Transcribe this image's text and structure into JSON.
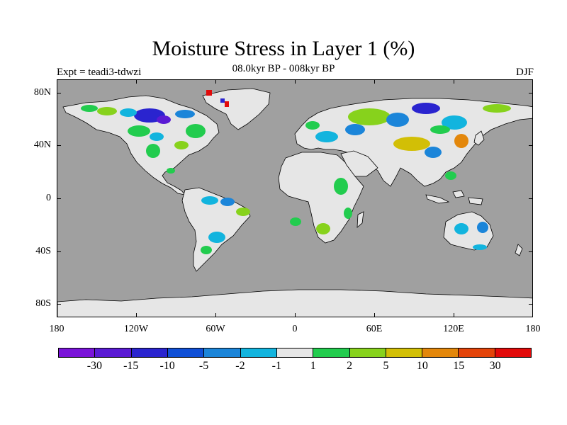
{
  "title": "Moisture Stress in Layer 1 (%)",
  "subtitle": "08.0kyr BP - 008kyr BP",
  "experiment_label": "Expt = teadi3-tdwzi",
  "season_label": "DJF",
  "map": {
    "ocean_color": "#a0a0a0",
    "land_base_color": "#e6e6e6",
    "latitude_labels": [
      "80N",
      "40N",
      "0",
      "40S",
      "80S"
    ],
    "latitude_values": [
      80,
      40,
      0,
      -40,
      -80
    ],
    "longitude_labels": [
      "180",
      "120W",
      "60W",
      "0",
      "60E",
      "120E",
      "180"
    ],
    "longitude_values": [
      -180,
      -120,
      -60,
      0,
      60,
      120,
      180
    ]
  },
  "colorbar": {
    "colors": [
      "#7a13d9",
      "#5a1ad4",
      "#2a24cf",
      "#0f4fd6",
      "#1b85d9",
      "#12b4de",
      "#e6e6e6",
      "#22cc4e",
      "#87d21c",
      "#d2bf06",
      "#e3870b",
      "#e3440a",
      "#e20a0a"
    ],
    "labels": [
      "-30",
      "-15",
      "-10",
      "-5",
      "-2",
      "-1",
      "1",
      "2",
      "5",
      "10",
      "15",
      "30"
    ]
  }
}
